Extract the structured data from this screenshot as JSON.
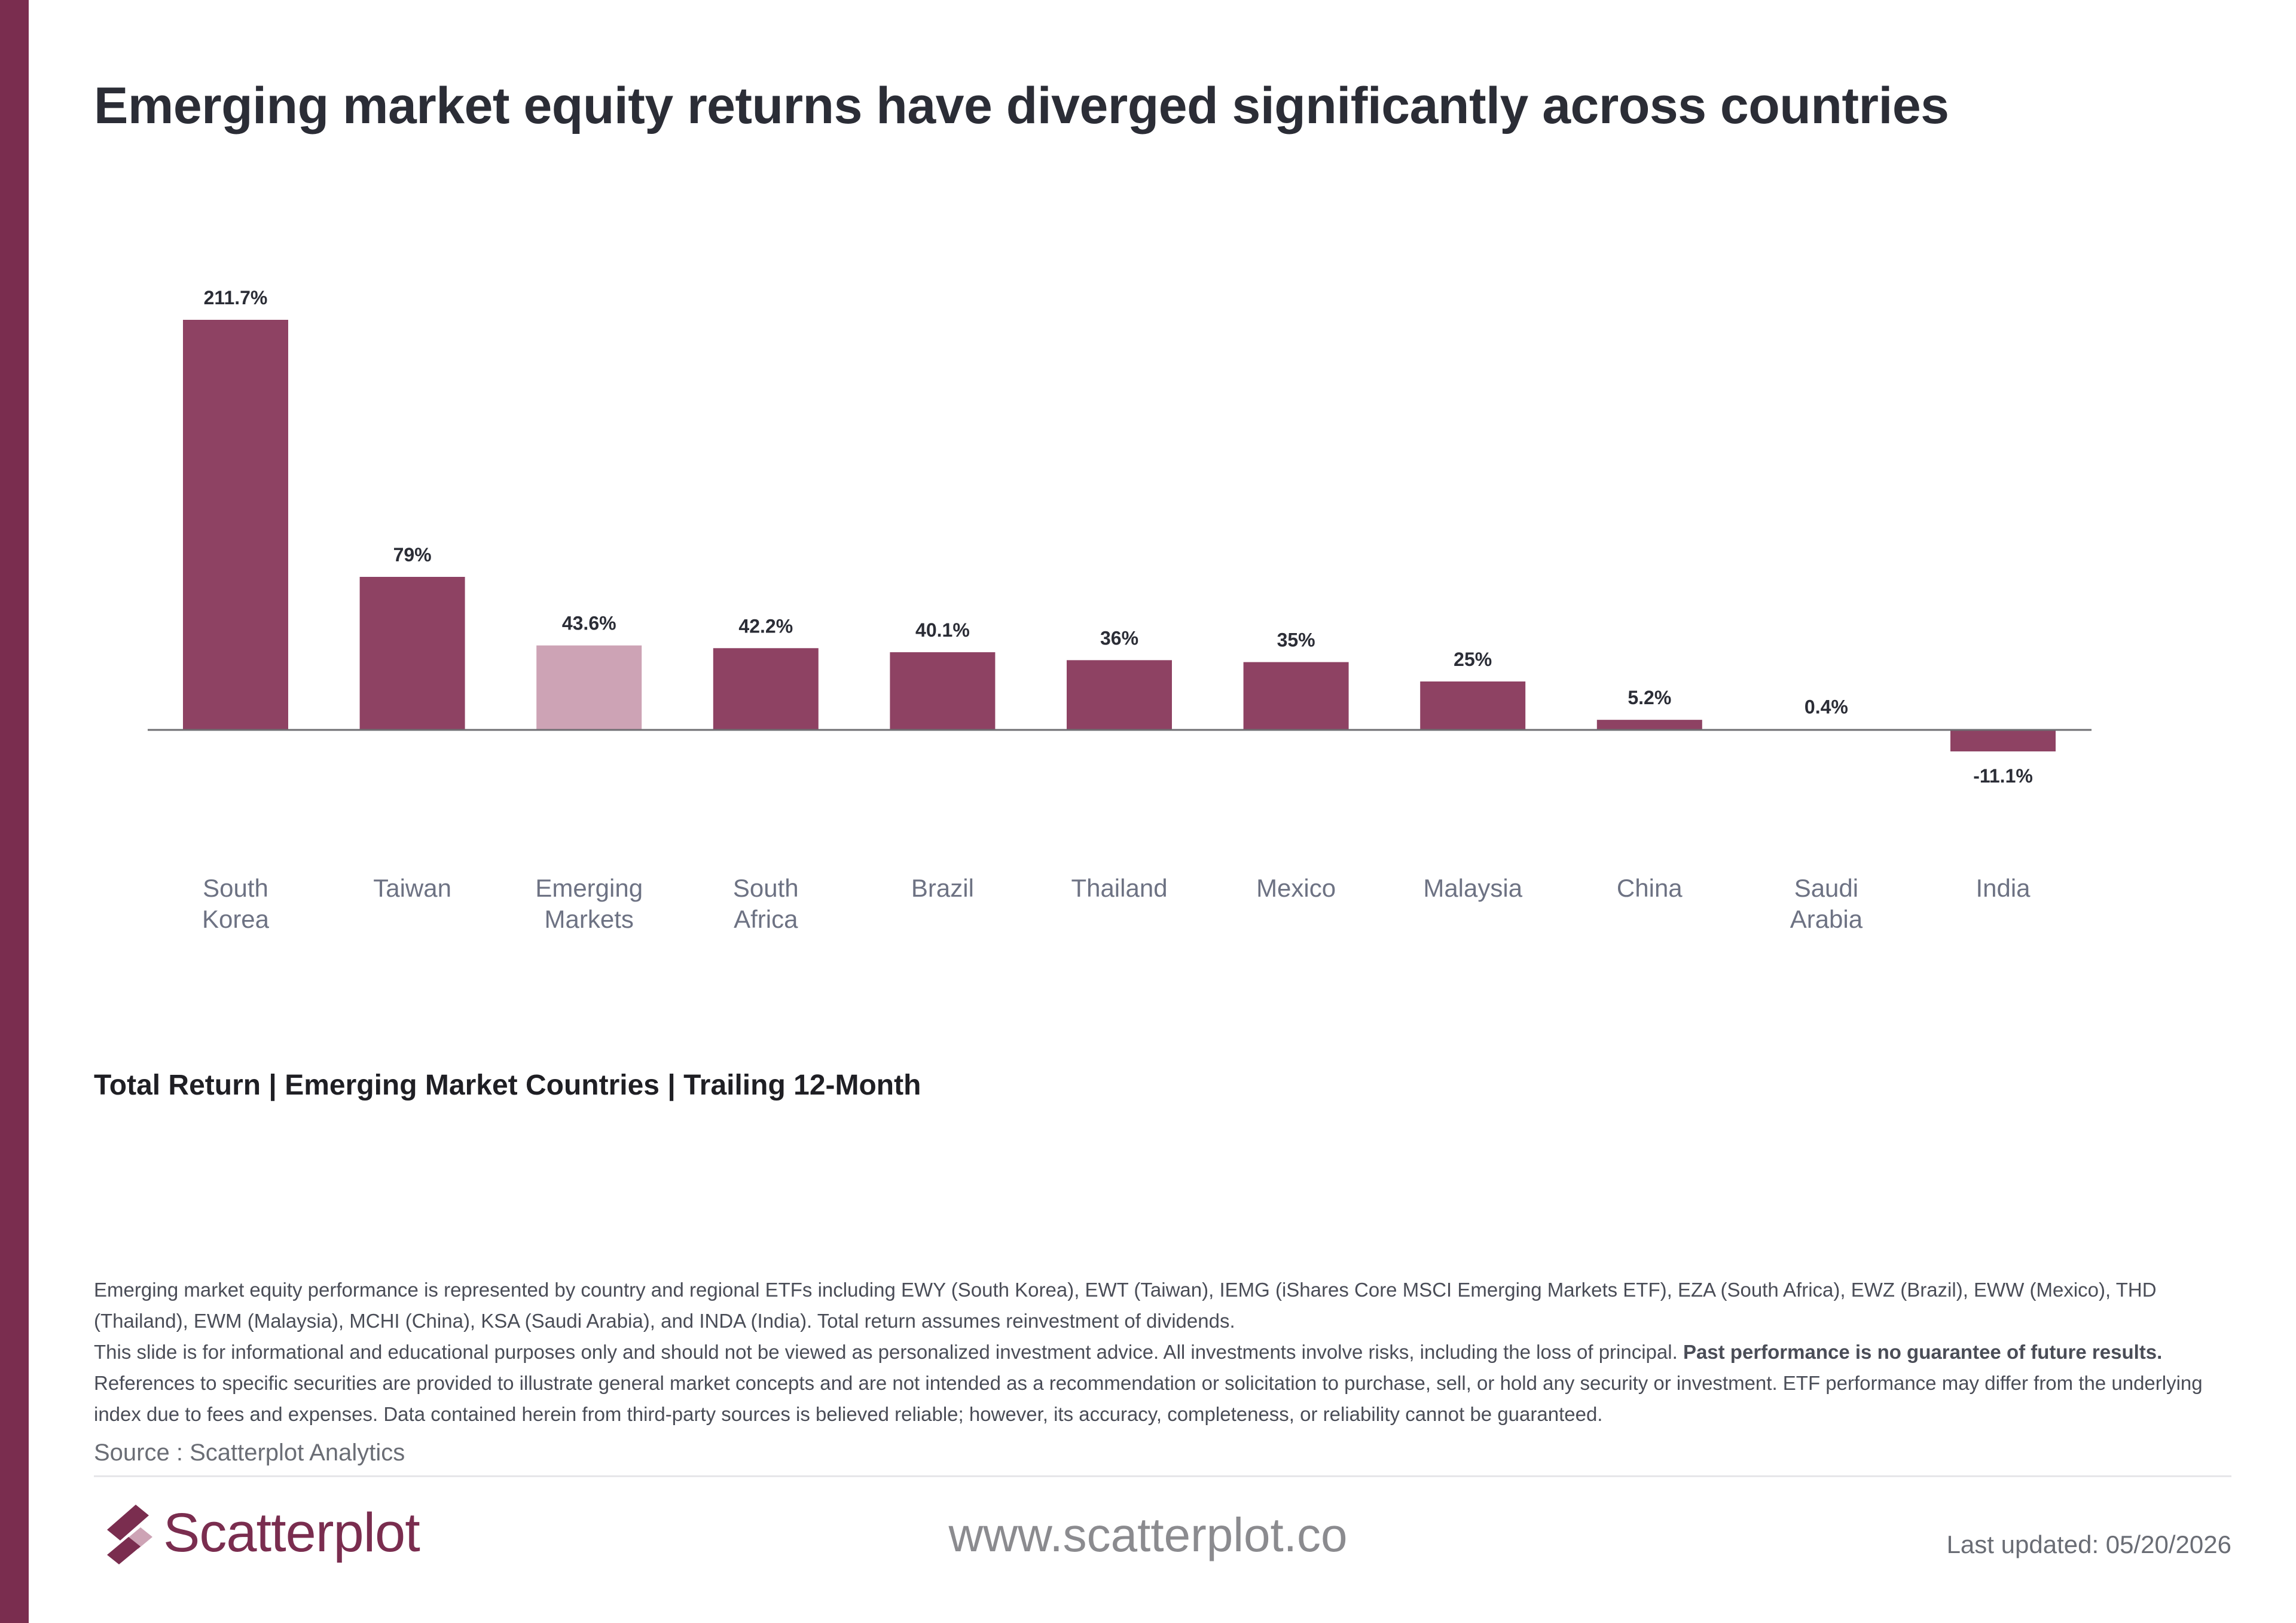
{
  "title": "Emerging market equity returns have diverged significantly across countries",
  "subtitle": "Total Return | Emerging Market Countries | Trailing 12-Month",
  "colors": {
    "accent": "#7a2d4f",
    "bar": "#8e4263",
    "highlight_bar": "#cda3b5",
    "baseline": "#6e6e72"
  },
  "chart_data": {
    "type": "bar",
    "categories": [
      [
        "South",
        "Korea"
      ],
      [
        "Taiwan"
      ],
      [
        "Emerging",
        "Markets"
      ],
      [
        "South",
        "Africa"
      ],
      [
        "Brazil"
      ],
      [
        "Thailand"
      ],
      [
        "Mexico"
      ],
      [
        "Malaysia"
      ],
      [
        "China"
      ],
      [
        "Saudi",
        "Arabia"
      ],
      [
        "India"
      ]
    ],
    "values": [
      211.7,
      79,
      43.6,
      42.2,
      40.1,
      36,
      35,
      25,
      5.2,
      0.4,
      -11.1
    ],
    "value_labels": [
      "211.7%",
      "79%",
      "43.6%",
      "42.2%",
      "40.1%",
      "36%",
      "35%",
      "25%",
      "5.2%",
      "0.4%",
      "-11.1%"
    ],
    "highlight_category": "Emerging Markets",
    "ylim": [
      -11.1,
      211.7
    ],
    "grid": false,
    "legend": "none"
  },
  "disclaimer": {
    "para1": "Emerging market equity performance is represented by country and regional ETFs including EWY (South Korea), EWT (Taiwan), IEMG (iShares Core MSCI Emerging Markets ETF), EZA (South Africa), EWZ (Brazil), EWW (Mexico), THD (Thailand), EWM (Malaysia), MCHI (China), KSA (Saudi Arabia), and INDA (India). Total return assumes reinvestment of dividends.",
    "para2_start": "This slide is for informational and educational purposes only and should not be viewed as personalized investment advice. All investments involve risks, including the loss of principal. ",
    "para2_bold": "Past performance is no guarantee of future results.",
    "para2_end": " References to specific securities are provided to illustrate general market concepts and are not intended as a recommendation or solicitation to purchase, sell, or hold any security or investment. ETF performance may differ from the underlying index due to fees and expenses. Data contained herein from third-party sources is believed reliable; however, its accuracy, completeness, or reliability cannot be guaranteed."
  },
  "source": "Source : Scatterplot Analytics",
  "footer": {
    "logo_text": "Scatterplot",
    "logo_icon": "scatterplot-logo-icon",
    "website": "www.scatterplot.co",
    "last_updated": "Last updated: 05/20/2026"
  }
}
